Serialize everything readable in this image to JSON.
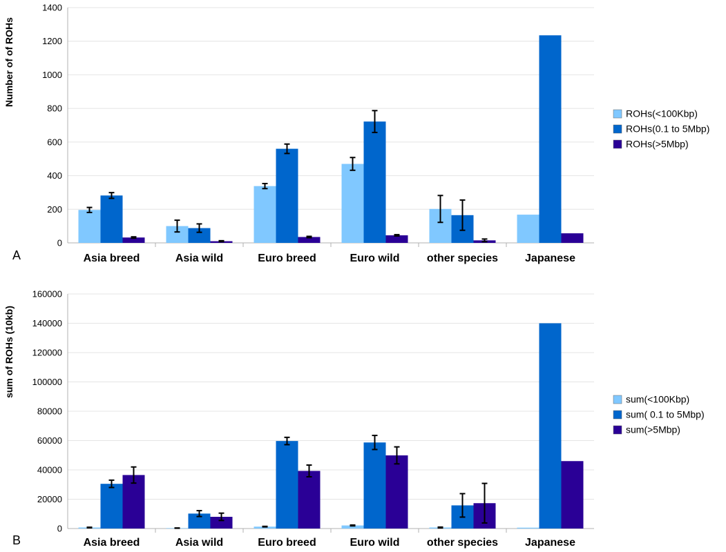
{
  "colors": {
    "light": "#80c8ff",
    "mid": "#0066cc",
    "dark": "#2a0096",
    "grid": "#e4e4e4",
    "axis": "#b0b0b0"
  },
  "chart_data": [
    {
      "panel_label": "A",
      "type": "bar",
      "ylabel": "Number of  of ROHs",
      "ylim": [
        0,
        1400
      ],
      "yticks": [
        0,
        200,
        400,
        600,
        800,
        1000,
        1200,
        1400
      ],
      "grid": true,
      "legend_position": "right",
      "categories": [
        "Asia breed",
        "Asia wild",
        "Euro breed",
        "Euro wild",
        "other species",
        "Japanese"
      ],
      "series": [
        {
          "name": "ROHs(<100Kbp)",
          "color": "#80c8ff",
          "values": [
            196,
            100,
            338,
            470,
            202,
            168
          ],
          "errors": [
            15,
            35,
            15,
            38,
            80,
            null
          ]
        },
        {
          "name": "ROHs(0.1 to 5Mbp)",
          "color": "#0066cc",
          "values": [
            282,
            88,
            560,
            722,
            165,
            1235
          ],
          "errors": [
            17,
            25,
            28,
            65,
            90,
            null
          ]
        },
        {
          "name": "ROHs(>5Mbp)",
          "color": "#2a0096",
          "values": [
            32,
            10,
            35,
            45,
            15,
            57
          ],
          "errors": [
            4,
            3,
            4,
            4,
            8,
            null
          ]
        }
      ]
    },
    {
      "panel_label": "B",
      "type": "bar",
      "ylabel": "sum of ROHs (10kb)",
      "ylim": [
        0,
        160000
      ],
      "yticks": [
        0,
        20000,
        40000,
        60000,
        80000,
        100000,
        120000,
        140000,
        160000
      ],
      "grid": true,
      "legend_position": "right",
      "categories": [
        "Asia breed",
        "Asia wild",
        "Euro breed",
        "Euro wild",
        "other species",
        "Japanese"
      ],
      "series": [
        {
          "name": "sum(<100Kbp)",
          "color": "#80c8ff",
          "values": [
            700,
            300,
            1300,
            2100,
            700,
            600
          ],
          "errors": [
            200,
            100,
            200,
            300,
            300,
            null
          ]
        },
        {
          "name": "sum( 0.1 to 5Mbp)",
          "color": "#0066cc",
          "values": [
            30500,
            10200,
            59700,
            58700,
            15800,
            140000
          ],
          "errors": [
            2500,
            2000,
            2500,
            4800,
            8000,
            null
          ]
        },
        {
          "name": "sum(>5Mbp)",
          "color": "#2a0096",
          "values": [
            36500,
            8000,
            39300,
            49900,
            17300,
            46000
          ],
          "errors": [
            5500,
            2500,
            4000,
            5800,
            13500,
            null
          ]
        }
      ]
    }
  ]
}
